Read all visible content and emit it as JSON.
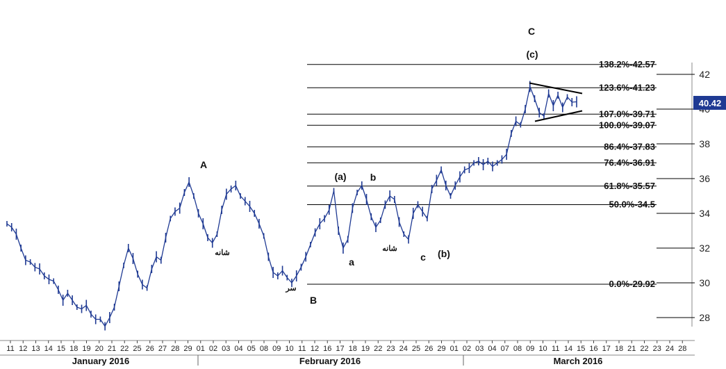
{
  "chart_data": {
    "type": "line",
    "y_axis": {
      "range": [
        27,
        43
      ],
      "ticks": [
        28,
        30,
        32,
        34,
        36,
        38,
        40,
        42
      ],
      "labels": [
        "28",
        "30",
        "32",
        "34",
        "36",
        "38",
        "40",
        "42"
      ],
      "side": "right"
    },
    "x_axis": {
      "day_labels": [
        "11",
        "12",
        "13",
        "14",
        "15",
        "18",
        "19",
        "20",
        "21",
        "22",
        "25",
        "26",
        "27",
        "28",
        "29",
        "01",
        "02",
        "03",
        "04",
        "05",
        "08",
        "09",
        "10",
        "11",
        "12",
        "16",
        "17",
        "18",
        "19",
        "22",
        "23",
        "24",
        "25",
        "26",
        "29",
        "01",
        "02",
        "03",
        "04",
        "07",
        "08",
        "09",
        "10",
        "11",
        "14",
        "15",
        "16",
        "17",
        "18",
        "21",
        "22",
        "23",
        "24",
        "28"
      ],
      "months": [
        "January 2016",
        "February 2016",
        "March 2016"
      ]
    },
    "current_price": "40.42",
    "series": [
      {
        "values": [
          33.4,
          33.2,
          32.8,
          32.0,
          31.3,
          31.2,
          30.9,
          30.8,
          30.4,
          30.2,
          30.1,
          29.6,
          29.0,
          29.4,
          29.0,
          28.6,
          28.5,
          28.7,
          28.2,
          27.9,
          27.9,
          27.5,
          28.0,
          28.6,
          29.8,
          31.0,
          32.0,
          31.4,
          30.5,
          29.9,
          29.7,
          30.8,
          31.5,
          31.3,
          32.6,
          33.7,
          34.1,
          34.3,
          35.2,
          35.8,
          35.0,
          34.0,
          33.4,
          32.6,
          32.3,
          32.8,
          34.2,
          35.1,
          35.4,
          35.6,
          35.0,
          34.7,
          34.4,
          34.0,
          33.4,
          32.7,
          31.5,
          30.6,
          30.4,
          30.7,
          30.3,
          30.0,
          30.4,
          30.9,
          31.5,
          32.2,
          32.9,
          33.4,
          33.7,
          34.2,
          35.3,
          33.0,
          32.0,
          32.5,
          34.3,
          35.2,
          35.6,
          34.8,
          33.8,
          33.2,
          33.6,
          34.5,
          35.0,
          34.8,
          33.5,
          32.8,
          32.5,
          34.0,
          34.5,
          34.1,
          33.7,
          35.4,
          35.9,
          36.5,
          35.6,
          35.0,
          35.6,
          36.1,
          36.5,
          36.6,
          36.9,
          37.0,
          36.8,
          37.0,
          36.7,
          36.9,
          37.1,
          37.4,
          38.6,
          39.3,
          39.1,
          40.0,
          41.3,
          40.6,
          39.8,
          39.6,
          40.9,
          40.2,
          40.8,
          40.1,
          40.7,
          40.4,
          40.42
        ]
      }
    ],
    "fib_levels": [
      {
        "label": "138.2%-42.57",
        "value": 42.57
      },
      {
        "label": "123.6%-41.23",
        "value": 41.23
      },
      {
        "label": "107.0%-39.71",
        "value": 39.71
      },
      {
        "label": "100.0%-39.07",
        "value": 39.07
      },
      {
        "label": "86.4%-37.83",
        "value": 37.83
      },
      {
        "label": "76.4%-36.91",
        "value": 36.91
      },
      {
        "label": "61.8%-35.57",
        "value": 35.57
      },
      {
        "label": "50.0%-34.5",
        "value": 34.5
      },
      {
        "label": "0.0%-29.92",
        "value": 29.92
      }
    ],
    "triangle": {
      "upper": [
        [
          41.5,
          40.9
        ]
      ],
      "lower": [
        [
          39.3,
          39.9
        ]
      ]
    },
    "wave_labels": [
      "A",
      "B",
      "(a)",
      "b",
      "a",
      "c",
      "(b)",
      "C",
      "(c)"
    ],
    "farsi_labels": [
      "شانه",
      "سر",
      "شانه"
    ],
    "grid": false,
    "colors": {
      "line": "#1f3a93",
      "badge": "#1f3a93",
      "fib": "#000000"
    }
  }
}
